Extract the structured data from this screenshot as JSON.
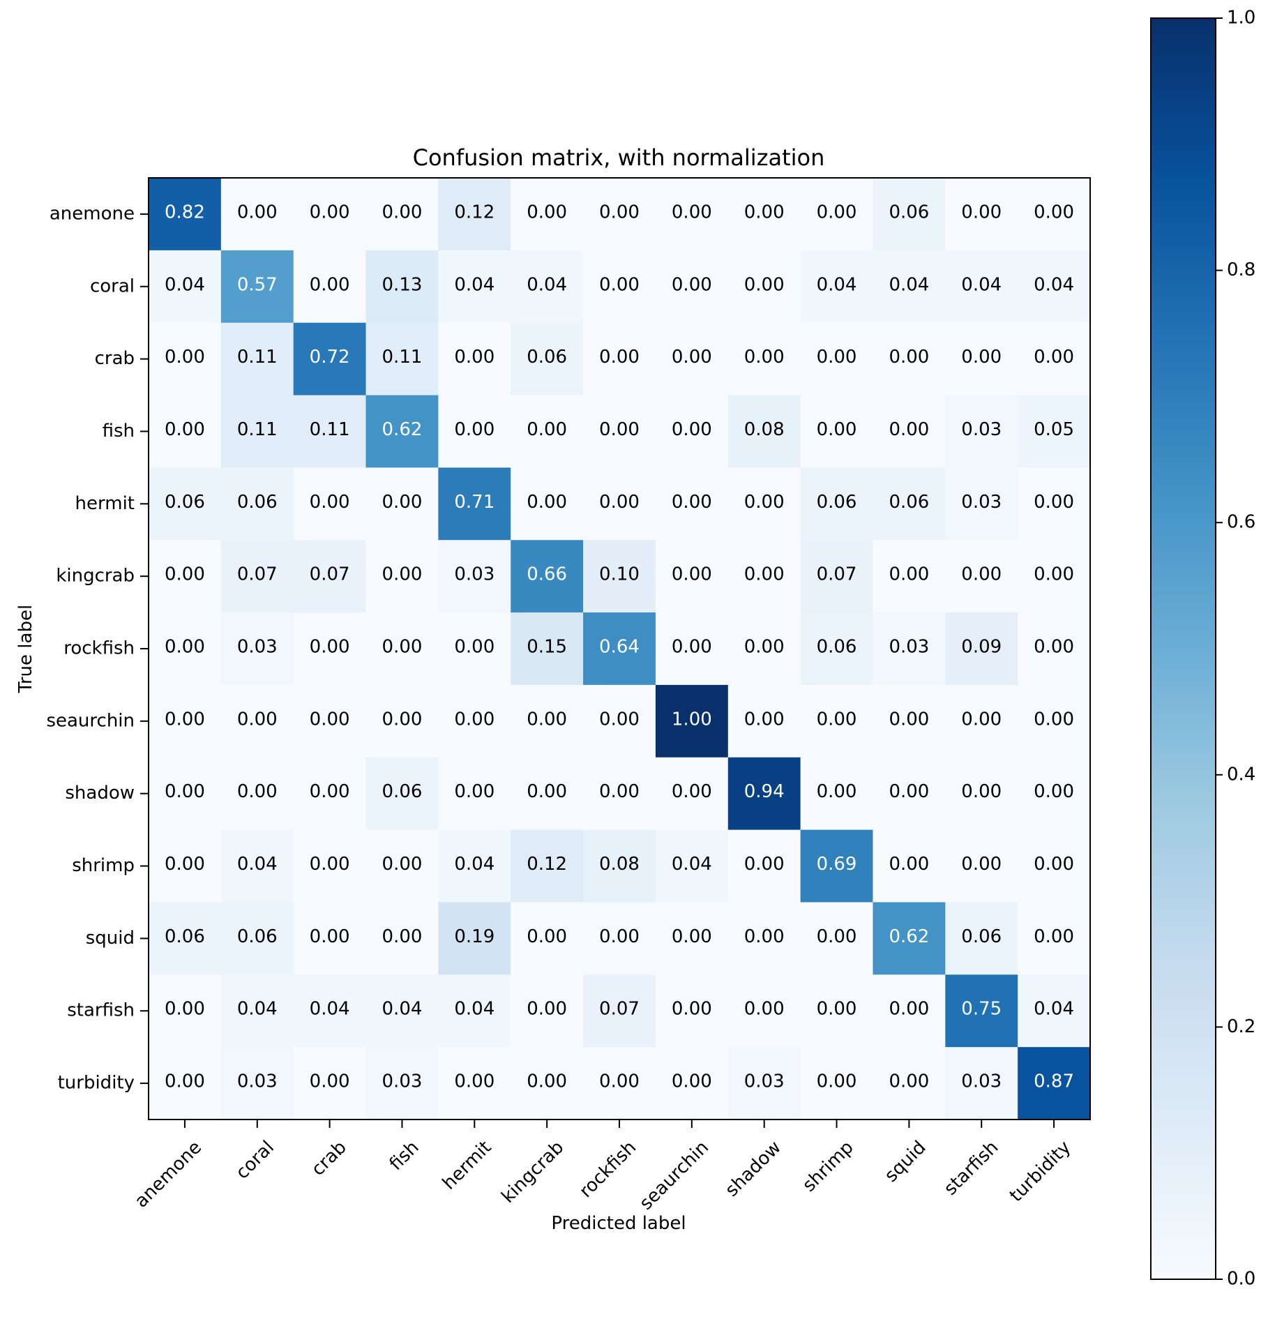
{
  "chart_data": {
    "type": "heatmap",
    "title": "Confusion matrix, with normalization",
    "xlabel": "Predicted label",
    "ylabel": "True label",
    "x_categories": [
      "anemone",
      "coral",
      "crab",
      "fish",
      "hermit",
      "kingcrab",
      "rockfish",
      "seaurchin",
      "shadow",
      "shrimp",
      "squid",
      "starfish",
      "turbidity"
    ],
    "y_categories": [
      "anemone",
      "coral",
      "crab",
      "fish",
      "hermit",
      "kingcrab",
      "rockfish",
      "seaurchin",
      "shadow",
      "shrimp",
      "squid",
      "starfish",
      "turbidity"
    ],
    "values": [
      [
        0.82,
        0.0,
        0.0,
        0.0,
        0.12,
        0.0,
        0.0,
        0.0,
        0.0,
        0.0,
        0.06,
        0.0,
        0.0
      ],
      [
        0.04,
        0.57,
        0.0,
        0.13,
        0.04,
        0.04,
        0.0,
        0.0,
        0.0,
        0.04,
        0.04,
        0.04,
        0.04
      ],
      [
        0.0,
        0.11,
        0.72,
        0.11,
        0.0,
        0.06,
        0.0,
        0.0,
        0.0,
        0.0,
        0.0,
        0.0,
        0.0
      ],
      [
        0.0,
        0.11,
        0.11,
        0.62,
        0.0,
        0.0,
        0.0,
        0.0,
        0.08,
        0.0,
        0.0,
        0.03,
        0.05
      ],
      [
        0.06,
        0.06,
        0.0,
        0.0,
        0.71,
        0.0,
        0.0,
        0.0,
        0.0,
        0.06,
        0.06,
        0.03,
        0.0
      ],
      [
        0.0,
        0.07,
        0.07,
        0.0,
        0.03,
        0.66,
        0.1,
        0.0,
        0.0,
        0.07,
        0.0,
        0.0,
        0.0
      ],
      [
        0.0,
        0.03,
        0.0,
        0.0,
        0.0,
        0.15,
        0.64,
        0.0,
        0.0,
        0.06,
        0.03,
        0.09,
        0.0
      ],
      [
        0.0,
        0.0,
        0.0,
        0.0,
        0.0,
        0.0,
        0.0,
        1.0,
        0.0,
        0.0,
        0.0,
        0.0,
        0.0
      ],
      [
        0.0,
        0.0,
        0.0,
        0.06,
        0.0,
        0.0,
        0.0,
        0.0,
        0.94,
        0.0,
        0.0,
        0.0,
        0.0
      ],
      [
        0.0,
        0.04,
        0.0,
        0.0,
        0.04,
        0.12,
        0.08,
        0.04,
        0.0,
        0.69,
        0.0,
        0.0,
        0.0
      ],
      [
        0.06,
        0.06,
        0.0,
        0.0,
        0.19,
        0.0,
        0.0,
        0.0,
        0.0,
        0.0,
        0.62,
        0.06,
        0.0
      ],
      [
        0.0,
        0.04,
        0.04,
        0.04,
        0.04,
        0.0,
        0.07,
        0.0,
        0.0,
        0.0,
        0.0,
        0.75,
        0.04
      ],
      [
        0.0,
        0.03,
        0.0,
        0.03,
        0.0,
        0.0,
        0.0,
        0.0,
        0.03,
        0.0,
        0.0,
        0.03,
        0.87
      ]
    ],
    "colormap": "Blues",
    "colorbar": {
      "range": [
        0.0,
        1.0
      ],
      "ticks": [
        0.0,
        0.2,
        0.4,
        0.6,
        0.8,
        1.0
      ],
      "tick_labels": [
        "0.0",
        "0.2",
        "0.4",
        "0.6",
        "0.8",
        "1.0"
      ]
    },
    "value_format": "2 decimals",
    "text_color_threshold": 0.5,
    "text_colors": {
      "light": "#ffffff",
      "dark": "#000000"
    },
    "grid": false
  }
}
